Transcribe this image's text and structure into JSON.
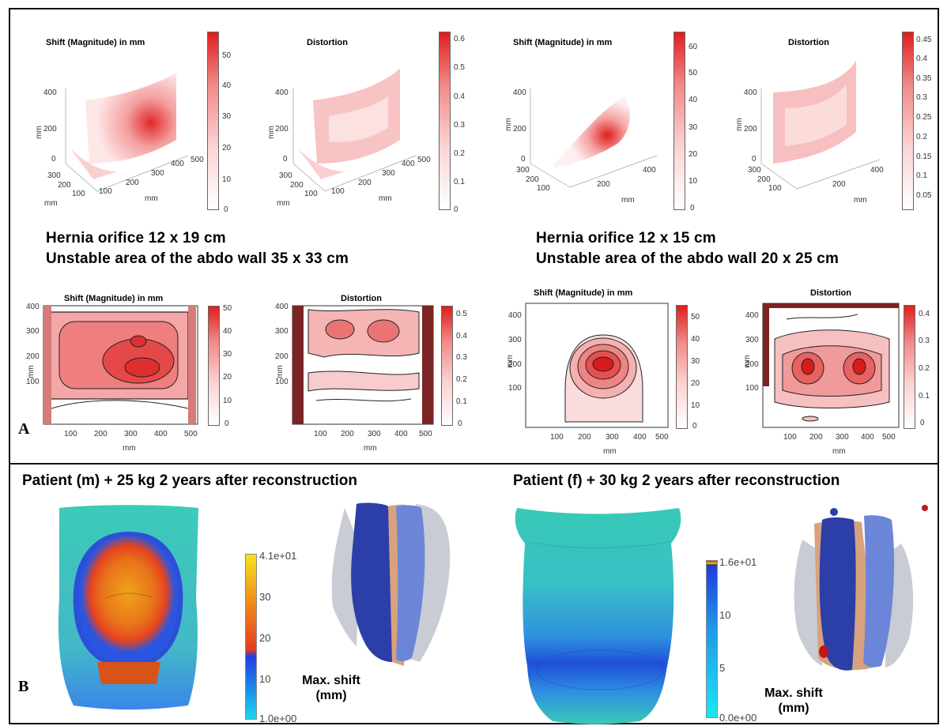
{
  "panel_a": {
    "letter": "A",
    "left_case": {
      "shift_3d": {
        "title": "Shift (Magnitude) in mm",
        "zlabel": "mm",
        "xlabel": "mm",
        "ylabel": "mm",
        "zticks": [
          "400",
          "200",
          "0"
        ],
        "yticks": [
          "300",
          "200",
          "100"
        ],
        "xticks": [
          "100",
          "200",
          "300",
          "400",
          "500"
        ],
        "cbar_ticks": [
          "50",
          "40",
          "30",
          "20",
          "10",
          "0"
        ]
      },
      "dist_3d": {
        "title": "Distortion",
        "zlabel": "mm",
        "xlabel": "mm",
        "ylabel": "mm",
        "zticks": [
          "400",
          "200",
          "0"
        ],
        "yticks": [
          "300",
          "200",
          "100"
        ],
        "xticks": [
          "100",
          "200",
          "300",
          "400",
          "500"
        ],
        "cbar_ticks": [
          "0.6",
          "0.5",
          "0.4",
          "0.3",
          "0.2",
          "0.1",
          "0"
        ]
      },
      "caption_line1": "Hernia orifice 12 x 19 cm",
      "caption_line2": "Unstable area of the abdo wall 35 x 33 cm",
      "shift_2d": {
        "title": "Shift (Magnitude) in mm",
        "ylabel": "mm",
        "xlabel": "mm",
        "yticks": [
          "400",
          "300",
          "200",
          "100"
        ],
        "xticks": [
          "100",
          "200",
          "300",
          "400",
          "500"
        ],
        "cbar_ticks": [
          "50",
          "40",
          "30",
          "20",
          "10",
          "0"
        ]
      },
      "dist_2d": {
        "title": "Distortion",
        "ylabel": "mm",
        "xlabel": "mm",
        "yticks": [
          "400",
          "300",
          "200",
          "100"
        ],
        "xticks": [
          "100",
          "200",
          "300",
          "400",
          "500"
        ],
        "cbar_ticks": [
          "0.5",
          "0.4",
          "0.3",
          "0.2",
          "0.1",
          "0"
        ]
      }
    },
    "right_case": {
      "shift_3d": {
        "title": "Shift (Magnitude) in mm",
        "zlabel": "mm",
        "xlabel": "mm",
        "ylabel": "mm",
        "zticks": [
          "400",
          "200",
          "0"
        ],
        "yticks": [
          "300",
          "200",
          "100"
        ],
        "xticks": [
          "200",
          "400"
        ],
        "cbar_ticks": [
          "60",
          "50",
          "40",
          "30",
          "20",
          "10",
          "0"
        ]
      },
      "dist_3d": {
        "title": "Distortion",
        "zlabel": "mm",
        "xlabel": "mm",
        "ylabel": "mm",
        "zticks": [
          "400",
          "200",
          "0"
        ],
        "yticks": [
          "300",
          "200",
          "100"
        ],
        "xticks": [
          "200",
          "400"
        ],
        "cbar_ticks": [
          "0.45",
          "0.4",
          "0.35",
          "0.3",
          "0.25",
          "0.2",
          "0.15",
          "0.1",
          "0.05"
        ]
      },
      "caption_line1": "Hernia orifice 12 x 15 cm",
      "caption_line2": "Unstable area of the abdo wall 20 x 25 cm",
      "shift_2d": {
        "title": "Shift (Magnitude) in mm",
        "ylabel": "mm",
        "xlabel": "mm",
        "yticks": [
          "400",
          "300",
          "200",
          "100"
        ],
        "xticks": [
          "100",
          "200",
          "300",
          "400",
          "500"
        ],
        "cbar_ticks": [
          "50",
          "40",
          "30",
          "20",
          "10",
          "0"
        ]
      },
      "dist_2d": {
        "title": "Distortion",
        "ylabel": "mm",
        "xlabel": "mm",
        "yticks": [
          "400",
          "300",
          "200",
          "100"
        ],
        "xticks": [
          "100",
          "200",
          "300",
          "400",
          "500"
        ],
        "cbar_ticks": [
          "0.4",
          "0.3",
          "0.2",
          "0.1",
          "0"
        ]
      }
    },
    "colors": {
      "heat_high": "#e01e1e",
      "heat_low": "#ffffff",
      "contour": "#222222"
    }
  },
  "panel_b": {
    "letter": "B",
    "left": {
      "title": "Patient (m)  + 25 kg 2 years after reconstruction",
      "cbar_ticks": [
        "4.1e+01",
        "30",
        "20",
        "10",
        "1.0e+00"
      ],
      "maxshift_line1": "Max. shift",
      "maxshift_line2": "(mm)"
    },
    "right": {
      "title": "Patient (f)  + 30 kg  2 years after reconstruction",
      "cbar_ticks": [
        "1.6e+01",
        "10",
        "5",
        "0.0e+00"
      ],
      "maxshift_line1": "Max. shift",
      "maxshift_line2": "(mm)"
    },
    "colors": {
      "torso_base": "#38c9b7",
      "shift_low": "#1f3de0",
      "shift_high": "#f7e11e",
      "mesh_dark": "#2c3ea8",
      "mesh_light": "#6b86d8",
      "mesh_skin": "#d8a27e",
      "mesh_grey": "#c9ccd4"
    }
  }
}
